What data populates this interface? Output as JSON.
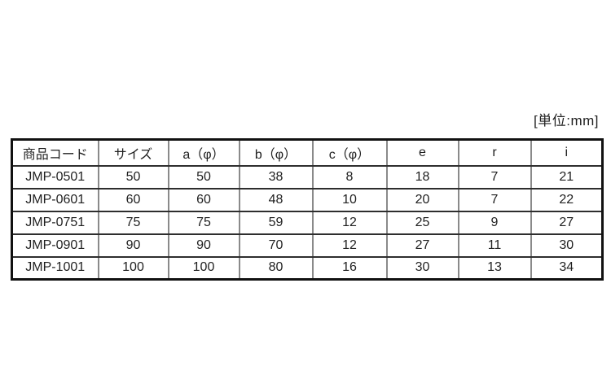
{
  "unit_label": "[単位:mm]",
  "table": {
    "columns": [
      "商品コード",
      "サイズ",
      "a（φ）",
      "b（φ）",
      "c（φ）",
      "e",
      "r",
      "i"
    ],
    "rows": [
      [
        "JMP-0501",
        "50",
        "50",
        "38",
        "8",
        "18",
        "7",
        "21"
      ],
      [
        "JMP-0601",
        "60",
        "60",
        "48",
        "10",
        "20",
        "7",
        "22"
      ],
      [
        "JMP-0751",
        "75",
        "75",
        "59",
        "12",
        "25",
        "9",
        "27"
      ],
      [
        "JMP-0901",
        "90",
        "90",
        "70",
        "12",
        "27",
        "11",
        "30"
      ],
      [
        "JMP-1001",
        "100",
        "100",
        "80",
        "16",
        "30",
        "13",
        "34"
      ]
    ]
  },
  "colors": {
    "background": "#ffffff",
    "text": "#1f1f1f",
    "outer_border": "#111111",
    "row_line": "#2e2e2e",
    "column_line": "#8a8a8a"
  }
}
